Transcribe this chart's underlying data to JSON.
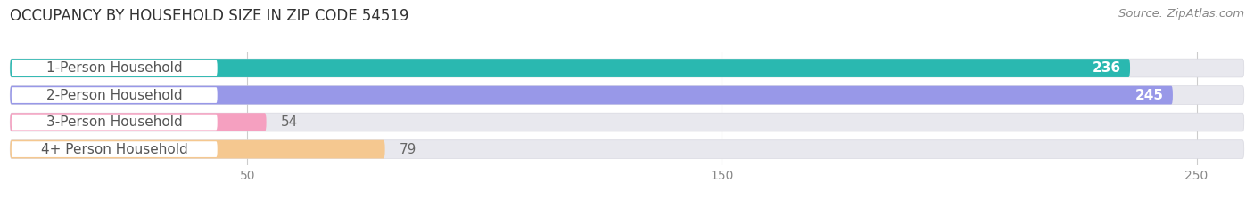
{
  "title": "OCCUPANCY BY HOUSEHOLD SIZE IN ZIP CODE 54519",
  "source": "Source: ZipAtlas.com",
  "categories": [
    "1-Person Household",
    "2-Person Household",
    "3-Person Household",
    "4+ Person Household"
  ],
  "values": [
    236,
    245,
    54,
    79
  ],
  "bar_colors": [
    "#2ab8b0",
    "#9898e8",
    "#f5a0c0",
    "#f5c890"
  ],
  "label_bg_color": "#ffffff",
  "xlim": [
    0,
    260
  ],
  "xticks": [
    50,
    150,
    250
  ],
  "value_label_inside": [
    true,
    true,
    false,
    false
  ],
  "background_color": "#ffffff",
  "bar_bg_color": "#e8e8ee",
  "bar_bg_border_color": "#d8d8e0",
  "title_fontsize": 12,
  "source_fontsize": 9.5,
  "tick_fontsize": 10,
  "label_fontsize": 11,
  "value_fontsize": 11
}
